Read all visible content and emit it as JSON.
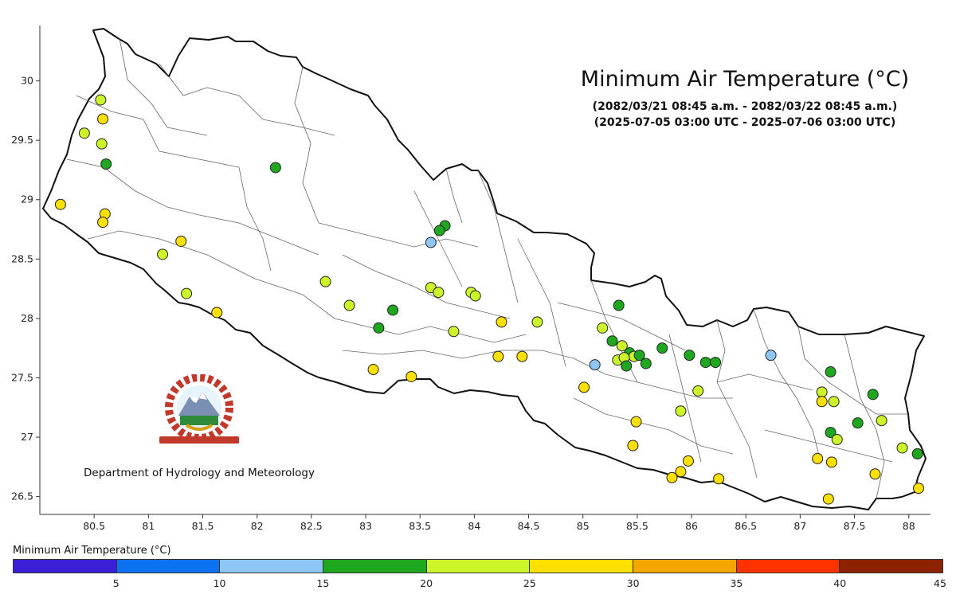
{
  "title": "Minimum Air Temperature (°C)",
  "subtitle_local": "(2082/03/21 08:45 a.m. - 2082/03/22 08:45 a.m.)",
  "subtitle_utc": "(2025-07-05 03:00 UTC - 2025-07-06 03:00 UTC)",
  "organization": "Department of Hydrology and Meteorology",
  "chart_data": {
    "type": "scatter",
    "xlim": [
      80.0,
      88.2
    ],
    "ylim": [
      26.35,
      30.48
    ],
    "x_ticks": [
      "80.5",
      "81",
      "81.5",
      "82",
      "82.5",
      "83",
      "83.5",
      "84",
      "84.5",
      "85",
      "85.5",
      "86",
      "86.5",
      "87",
      "87.5",
      "88"
    ],
    "y_ticks": [
      "26.5",
      "27",
      "27.5",
      "28",
      "28.5",
      "29",
      "29.5",
      "30"
    ],
    "legend": {
      "title": "Minimum Air Temperature (°C)",
      "bins": [
        {
          "from": 0,
          "to": 5,
          "color": "#3a1fd6"
        },
        {
          "from": 5,
          "to": 10,
          "color": "#0d72f2"
        },
        {
          "from": 10,
          "to": 15,
          "color": "#8ec6f5"
        },
        {
          "from": 15,
          "to": 20,
          "color": "#1fa81f"
        },
        {
          "from": 20,
          "to": 25,
          "color": "#ccf52a"
        },
        {
          "from": 25,
          "to": 30,
          "color": "#fbe000"
        },
        {
          "from": 30,
          "to": 35,
          "color": "#f5a700"
        },
        {
          "from": 35,
          "to": 40,
          "color": "#ff3300"
        },
        {
          "from": 40,
          "to": 45,
          "color": "#8c2200"
        }
      ],
      "labels": [
        "5",
        "10",
        "15",
        "20",
        "25",
        "30",
        "35",
        "40",
        "45"
      ]
    },
    "stations": [
      {
        "lon": 80.56,
        "lat": 29.84,
        "temp": 22.5
      },
      {
        "lon": 80.58,
        "lat": 29.68,
        "temp": 27.0
      },
      {
        "lon": 80.41,
        "lat": 29.56,
        "temp": 22.5
      },
      {
        "lon": 80.57,
        "lat": 29.47,
        "temp": 22.0
      },
      {
        "lon": 80.61,
        "lat": 29.3,
        "temp": 17.5
      },
      {
        "lon": 82.17,
        "lat": 29.27,
        "temp": 17.5
      },
      {
        "lon": 80.19,
        "lat": 28.96,
        "temp": 27.0
      },
      {
        "lon": 80.6,
        "lat": 28.88,
        "temp": 27.0
      },
      {
        "lon": 80.58,
        "lat": 28.81,
        "temp": 27.0
      },
      {
        "lon": 81.3,
        "lat": 28.65,
        "temp": 27.5
      },
      {
        "lon": 81.13,
        "lat": 28.54,
        "temp": 22.0
      },
      {
        "lon": 81.35,
        "lat": 28.21,
        "temp": 22.5
      },
      {
        "lon": 81.63,
        "lat": 28.05,
        "temp": 27.0
      },
      {
        "lon": 82.63,
        "lat": 28.31,
        "temp": 22.0
      },
      {
        "lon": 82.85,
        "lat": 28.11,
        "temp": 22.5
      },
      {
        "lon": 83.25,
        "lat": 28.07,
        "temp": 17.5
      },
      {
        "lon": 83.12,
        "lat": 27.92,
        "temp": 17.0
      },
      {
        "lon": 83.07,
        "lat": 27.57,
        "temp": 27.0
      },
      {
        "lon": 83.42,
        "lat": 27.51,
        "temp": 27.0
      },
      {
        "lon": 83.73,
        "lat": 28.78,
        "temp": 17.0
      },
      {
        "lon": 83.68,
        "lat": 28.74,
        "temp": 17.5
      },
      {
        "lon": 83.6,
        "lat": 28.64,
        "temp": 12.5
      },
      {
        "lon": 83.6,
        "lat": 28.26,
        "temp": 22.5
      },
      {
        "lon": 83.67,
        "lat": 28.22,
        "temp": 22.0
      },
      {
        "lon": 83.97,
        "lat": 28.22,
        "temp": 22.0
      },
      {
        "lon": 84.01,
        "lat": 28.19,
        "temp": 22.5
      },
      {
        "lon": 83.81,
        "lat": 27.89,
        "temp": 22.0
      },
      {
        "lon": 84.25,
        "lat": 27.97,
        "temp": 27.0
      },
      {
        "lon": 84.58,
        "lat": 27.97,
        "temp": 22.5
      },
      {
        "lon": 84.22,
        "lat": 27.68,
        "temp": 27.0
      },
      {
        "lon": 84.44,
        "lat": 27.68,
        "temp": 27.0
      },
      {
        "lon": 85.01,
        "lat": 27.42,
        "temp": 27.0
      },
      {
        "lon": 85.11,
        "lat": 27.61,
        "temp": 12.5
      },
      {
        "lon": 85.33,
        "lat": 28.11,
        "temp": 17.5
      },
      {
        "lon": 85.18,
        "lat": 27.92,
        "temp": 22.0
      },
      {
        "lon": 85.27,
        "lat": 27.81,
        "temp": 17.5
      },
      {
        "lon": 85.36,
        "lat": 27.77,
        "temp": 22.0
      },
      {
        "lon": 85.43,
        "lat": 27.71,
        "temp": 17.5
      },
      {
        "lon": 85.47,
        "lat": 27.68,
        "temp": 22.5
      },
      {
        "lon": 85.52,
        "lat": 27.69,
        "temp": 17.5
      },
      {
        "lon": 85.32,
        "lat": 27.65,
        "temp": 22.0
      },
      {
        "lon": 85.38,
        "lat": 27.67,
        "temp": 22.5
      },
      {
        "lon": 85.58,
        "lat": 27.62,
        "temp": 17.5
      },
      {
        "lon": 85.4,
        "lat": 27.6,
        "temp": 17.5
      },
      {
        "lon": 85.73,
        "lat": 27.75,
        "temp": 17.5
      },
      {
        "lon": 85.98,
        "lat": 27.69,
        "temp": 17.5
      },
      {
        "lon": 86.13,
        "lat": 27.63,
        "temp": 17.5
      },
      {
        "lon": 86.22,
        "lat": 27.63,
        "temp": 17.5
      },
      {
        "lon": 86.73,
        "lat": 27.69,
        "temp": 12.5
      },
      {
        "lon": 86.06,
        "lat": 27.39,
        "temp": 22.5
      },
      {
        "lon": 85.9,
        "lat": 27.22,
        "temp": 22.0
      },
      {
        "lon": 85.49,
        "lat": 27.13,
        "temp": 27.0
      },
      {
        "lon": 85.46,
        "lat": 26.93,
        "temp": 27.0
      },
      {
        "lon": 85.97,
        "lat": 26.8,
        "temp": 27.0
      },
      {
        "lon": 85.9,
        "lat": 26.71,
        "temp": 27.0
      },
      {
        "lon": 85.82,
        "lat": 26.66,
        "temp": 27.0
      },
      {
        "lon": 86.25,
        "lat": 26.65,
        "temp": 27.0
      },
      {
        "lon": 87.28,
        "lat": 27.55,
        "temp": 17.5
      },
      {
        "lon": 87.2,
        "lat": 27.38,
        "temp": 22.5
      },
      {
        "lon": 87.2,
        "lat": 27.3,
        "temp": 27.0
      },
      {
        "lon": 87.31,
        "lat": 27.3,
        "temp": 22.5
      },
      {
        "lon": 87.67,
        "lat": 27.36,
        "temp": 17.5
      },
      {
        "lon": 87.53,
        "lat": 27.12,
        "temp": 17.5
      },
      {
        "lon": 87.75,
        "lat": 27.14,
        "temp": 22.5
      },
      {
        "lon": 87.28,
        "lat": 27.04,
        "temp": 17.5
      },
      {
        "lon": 87.34,
        "lat": 26.98,
        "temp": 22.5
      },
      {
        "lon": 87.16,
        "lat": 26.82,
        "temp": 27.0
      },
      {
        "lon": 87.29,
        "lat": 26.79,
        "temp": 27.0
      },
      {
        "lon": 87.94,
        "lat": 26.91,
        "temp": 22.5
      },
      {
        "lon": 88.08,
        "lat": 26.86,
        "temp": 17.5
      },
      {
        "lon": 87.69,
        "lat": 26.69,
        "temp": 27.0
      },
      {
        "lon": 88.09,
        "lat": 26.57,
        "temp": 27.0
      },
      {
        "lon": 87.26,
        "lat": 26.48,
        "temp": 27.0
      }
    ]
  }
}
